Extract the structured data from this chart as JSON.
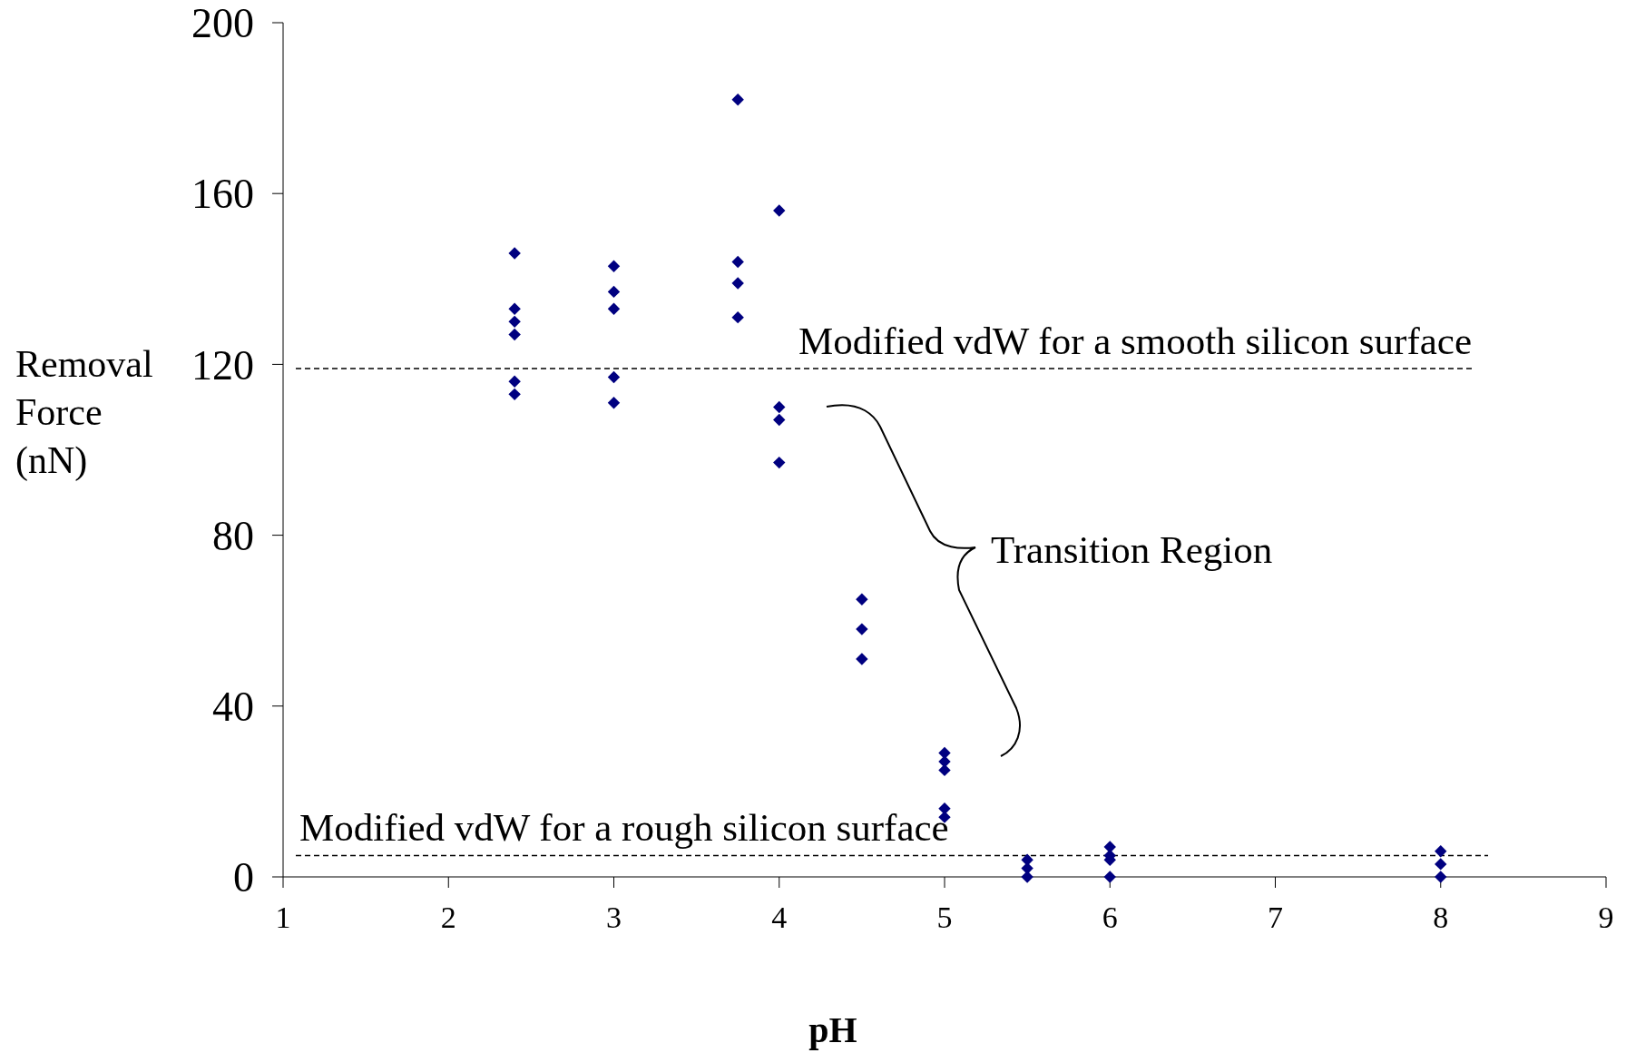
{
  "chart_data": {
    "type": "scatter",
    "xlabel": "pH",
    "ylabel": "Removal Force (nN)",
    "x": [
      2.4,
      2.4,
      2.4,
      2.4,
      2.4,
      2.4,
      3,
      3,
      3,
      3,
      3,
      3.75,
      3.75,
      3.75,
      3.75,
      4,
      4,
      4,
      4,
      4.5,
      4.5,
      4.5,
      5,
      5,
      5,
      5,
      5,
      5.5,
      5.5,
      5.5,
      6,
      6,
      6,
      6,
      8,
      8,
      8
    ],
    "values": [
      146,
      133,
      130,
      127,
      116,
      113,
      143,
      137,
      133,
      117,
      111,
      182,
      144,
      139,
      131,
      156,
      110,
      107,
      97,
      65,
      58,
      51,
      29,
      27,
      25,
      16,
      14,
      4,
      2,
      0,
      7,
      5,
      4,
      0,
      6,
      3,
      0
    ],
    "color": "#000080",
    "marker": "diamond",
    "xlim": [
      1,
      9
    ],
    "xticks": [
      1,
      2,
      3,
      4,
      5,
      6,
      7,
      8,
      9
    ],
    "ylim": [
      0,
      200
    ],
    "yticks": [
      0,
      40,
      80,
      120,
      160,
      200
    ],
    "grid": false,
    "ref_lines": [
      {
        "axis": "y",
        "value": 119,
        "label": "Modified vdW for a smooth silicon surface",
        "line_style": "dashed",
        "color": "#000000"
      },
      {
        "axis": "y",
        "value": 5,
        "label": "Modified vdW for a rough silicon surface",
        "line_style": "dashed",
        "color": "#000000"
      }
    ],
    "annotations": [
      "Transition Region"
    ]
  }
}
